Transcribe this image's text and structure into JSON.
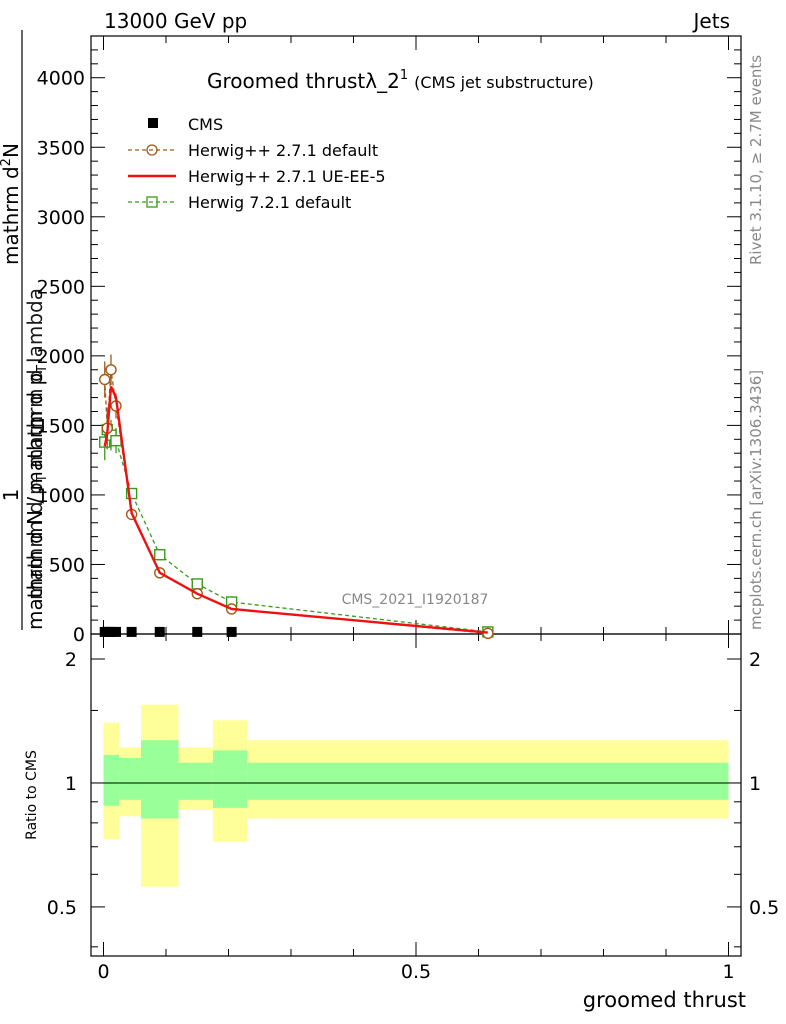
{
  "header": {
    "left": "13000 GeV pp",
    "right": "Jets"
  },
  "title": {
    "main": "Groomed thrustλ_2",
    "superscript": "1",
    "sub": "(CMS jet substructure)"
  },
  "side_labels": {
    "rivet": "Rivet 3.1.10, ≥ 2.7M events",
    "mcplots": "mcplots.cern.ch [arXiv:1306.3436]"
  },
  "watermark": "CMS_2021_I1920187",
  "ylabel_main": {
    "numerator": "mathrm d",
    "numerator_sup": "2",
    "numerator_tail": "N",
    "denominator": "mathrm d p",
    "denominator_sub": "T",
    "denominator_tail": " mathrm d lambda",
    "prefactor_num": "1",
    "prefactor_den": "mathrm d N / mathrm d p",
    "prefactor_den_sub": "T"
  },
  "ylabel_ratio": "Ratio to CMS",
  "xlabel": "groomed thrust",
  "colors": {
    "cms": "#000000",
    "herwig_default": "#a05a18",
    "herwig_ueee5": "#ee1111",
    "herwig721": "#3a9a1a",
    "band_inner": "#99ff99",
    "band_outer": "#ffff99"
  },
  "chart_data": [
    {
      "type": "line",
      "panel": "main",
      "xlim": [
        -0.02,
        1.02
      ],
      "ylim": [
        0,
        4300
      ],
      "yticks": [
        0,
        500,
        1000,
        1500,
        2000,
        2500,
        3000,
        3500,
        4000
      ],
      "legend_placement": "top-left",
      "series": [
        {
          "name": "CMS",
          "style": "markers",
          "x": [
            0.002,
            0.006,
            0.012,
            0.02,
            0.045,
            0.09,
            0.15,
            0.205
          ],
          "y": [
            15,
            15,
            15,
            15,
            15,
            15,
            15,
            15
          ]
        },
        {
          "name": "Herwig++ 2.7.1 default",
          "style": "dashed-circle",
          "x": [
            0.002,
            0.006,
            0.012,
            0.02,
            0.045,
            0.09,
            0.15,
            0.205,
            0.615
          ],
          "y": [
            1830,
            1480,
            1900,
            1640,
            860,
            440,
            290,
            180,
            5
          ],
          "err": [
            130,
            150,
            110,
            90,
            40,
            20,
            15,
            10,
            2
          ]
        },
        {
          "name": "Herwig++ 2.7.1 UE-EE-5",
          "style": "solid",
          "x": [
            0.002,
            0.006,
            0.012,
            0.02,
            0.045,
            0.09,
            0.15,
            0.205,
            0.615
          ],
          "y": [
            1350,
            1440,
            1780,
            1700,
            870,
            440,
            290,
            180,
            10
          ]
        },
        {
          "name": "Herwig 7.2.1 default",
          "style": "dashed-square",
          "x": [
            0.002,
            0.006,
            0.012,
            0.02,
            0.045,
            0.09,
            0.15,
            0.205,
            0.615
          ],
          "y": [
            1380,
            1470,
            1430,
            1390,
            1010,
            570,
            360,
            230,
            15
          ],
          "err": [
            130,
            140,
            110,
            90,
            40,
            20,
            15,
            10,
            2
          ]
        }
      ]
    },
    {
      "type": "area",
      "panel": "ratio",
      "xlim": [
        -0.02,
        1.02
      ],
      "ylim": [
        0.38,
        2.3
      ],
      "yticks": [
        0.5,
        1,
        2
      ],
      "xticks": [
        0,
        0.5,
        1
      ],
      "reference_line": 1,
      "bins": [
        {
          "x0": 0.0,
          "x1": 0.025,
          "inner": [
            0.88,
            1.17
          ],
          "outer": [
            0.73,
            1.4
          ]
        },
        {
          "x0": 0.025,
          "x1": 0.06,
          "inner": [
            0.91,
            1.15
          ],
          "outer": [
            0.83,
            1.22
          ]
        },
        {
          "x0": 0.06,
          "x1": 0.12,
          "inner": [
            0.82,
            1.27
          ],
          "outer": [
            0.56,
            1.55
          ]
        },
        {
          "x0": 0.12,
          "x1": 0.175,
          "inner": [
            0.91,
            1.12
          ],
          "outer": [
            0.86,
            1.22
          ]
        },
        {
          "x0": 0.175,
          "x1": 0.23,
          "inner": [
            0.87,
            1.2
          ],
          "outer": [
            0.72,
            1.42
          ]
        },
        {
          "x0": 0.23,
          "x1": 1.0,
          "inner": [
            0.91,
            1.12
          ],
          "outer": [
            0.82,
            1.27
          ]
        }
      ]
    }
  ]
}
